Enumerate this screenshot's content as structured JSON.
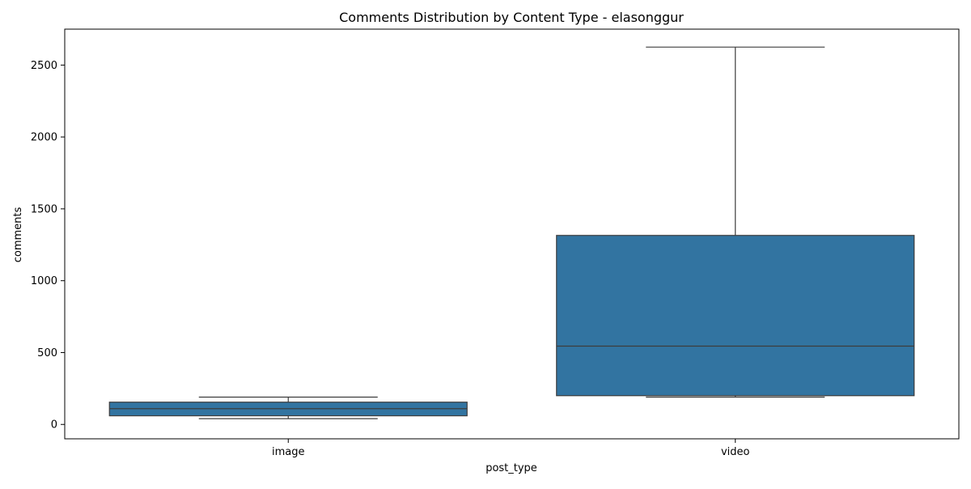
{
  "chart_data": {
    "type": "box",
    "title": "Comments Distribution by Content Type - elasonggur",
    "xlabel": "post_type",
    "ylabel": "comments",
    "categories": [
      "image",
      "video"
    ],
    "ylim": [
      -100,
      2750
    ],
    "yticks": [
      0,
      500,
      1000,
      1500,
      2000,
      2500
    ],
    "ytick_labels": [
      "0",
      "500",
      "1000",
      "1500",
      "2000",
      "2500"
    ],
    "grid": false,
    "legend": "none",
    "box_color": "#3274a1",
    "line_color": "#3d3d3d",
    "boxes": [
      {
        "category": "image",
        "whisker_low": 40,
        "q1": 60,
        "median": 110,
        "q3": 155,
        "whisker_high": 190
      },
      {
        "category": "video",
        "whisker_low": 190,
        "q1": 200,
        "median": 545,
        "q3": 1315,
        "whisker_high": 2625
      }
    ]
  }
}
